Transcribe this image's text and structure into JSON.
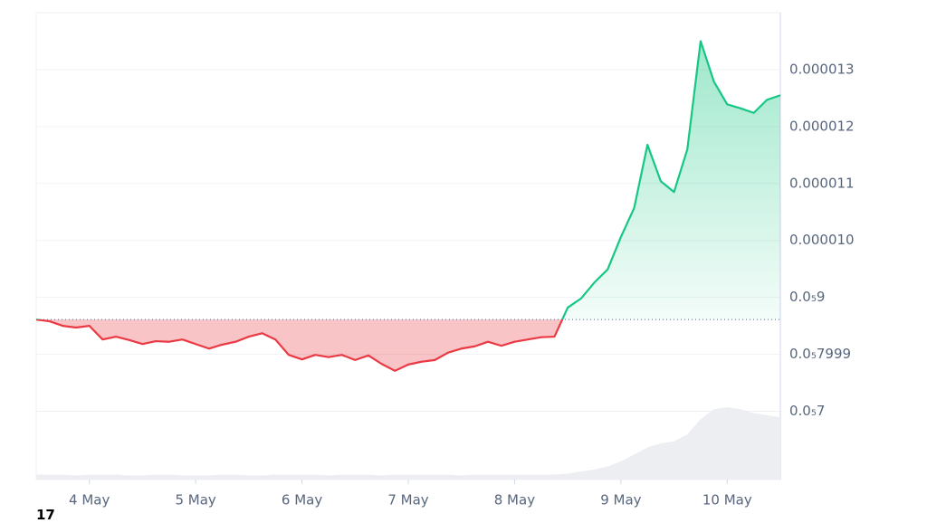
{
  "chart_data": {
    "type": "line",
    "x": [
      0,
      3,
      6,
      9,
      12,
      15,
      18,
      21,
      24,
      27,
      30,
      33,
      36,
      39,
      42,
      45,
      48,
      51,
      54,
      57,
      60,
      63,
      66,
      69,
      72,
      75,
      78,
      81,
      84,
      87,
      90,
      93,
      96,
      99,
      102,
      105,
      108,
      111,
      114,
      117,
      120,
      123,
      126,
      129,
      132,
      135,
      138,
      141,
      144,
      147,
      150,
      153,
      156,
      159,
      162,
      165,
      168
    ],
    "values": [
      8.61e-06,
      8.58e-06,
      8.5e-06,
      8.47e-06,
      8.5e-06,
      8.26e-06,
      8.31e-06,
      8.25e-06,
      8.18e-06,
      8.23e-06,
      8.22e-06,
      8.26e-06,
      8.18e-06,
      8.1e-06,
      8.17e-06,
      8.22e-06,
      8.31e-06,
      8.37e-06,
      8.26e-06,
      7.99e-06,
      7.91e-06,
      7.99e-06,
      7.95e-06,
      7.99e-06,
      7.9e-06,
      7.98e-06,
      7.83e-06,
      7.71e-06,
      7.82e-06,
      7.87e-06,
      7.9e-06,
      8.03e-06,
      8.1e-06,
      8.14e-06,
      8.22e-06,
      8.15e-06,
      8.22e-06,
      8.26e-06,
      8.3e-06,
      8.31e-06,
      8.82e-06,
      8.98e-06,
      9.26e-06,
      9.49e-06,
      1.006e-05,
      1.057e-05,
      1.168e-05,
      1.104e-05,
      1.085e-05,
      1.16e-05,
      1.35e-05,
      1.279e-05,
      1.239e-05,
      1.232e-05,
      1.224e-05,
      1.247e-05,
      1.255e-05
    ],
    "volume": [
      5,
      5,
      5,
      4,
      5,
      5,
      5,
      4,
      4,
      5,
      5,
      4,
      4,
      4,
      5,
      5,
      4,
      4,
      5,
      5,
      5,
      5,
      4,
      5,
      5,
      5,
      4,
      5,
      5,
      5,
      5,
      5,
      4,
      5,
      5,
      5,
      5,
      5,
      5,
      5,
      6,
      8,
      10,
      13,
      18,
      25,
      32,
      36,
      38,
      45,
      60,
      70,
      72,
      70,
      66,
      64,
      62
    ],
    "baseline": 8.61e-06,
    "up_color": "#16c784",
    "down_color": "#ea3943",
    "volume_color": "#eceef1",
    "xlim": [
      0,
      168
    ],
    "xticks": [
      {
        "value": 12,
        "label": "4 May"
      },
      {
        "value": 36,
        "label": "5 May"
      },
      {
        "value": 60,
        "label": "6 May"
      },
      {
        "value": 84,
        "label": "7 May"
      },
      {
        "value": 108,
        "label": "8 May"
      },
      {
        "value": 132,
        "label": "9 May"
      },
      {
        "value": 156,
        "label": "10 May"
      }
    ],
    "ylim": [
      5.8e-06,
      1.4e-05
    ],
    "yticks": [
      1.3e-05,
      1.2e-05,
      1.1e-05,
      {
        "value": 1e-05,
        "label": "0.000010"
      },
      {
        "value": 9e-06,
        "label": "0.0₅9"
      },
      {
        "value": 7.999e-06,
        "label": "0.0₅7999"
      },
      {
        "value": 7e-06,
        "label": "0.0₅7"
      }
    ],
    "grid": true
  },
  "logo_text": "17"
}
